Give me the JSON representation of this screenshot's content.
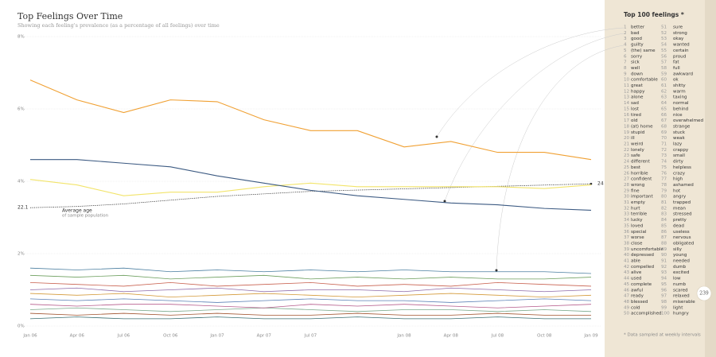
{
  "chart_data": {
    "type": "line",
    "title": "Top Feelings Over Time",
    "subtitle": "Showing each feeling's prevalence (as a percentage of all feelings) over time",
    "x": [
      0,
      3,
      6,
      9,
      12,
      15,
      18,
      21,
      24,
      27,
      30,
      33,
      36
    ],
    "xlim": [
      0,
      36
    ],
    "xticks": [
      {
        "value": 0,
        "label": "Jan 06"
      },
      {
        "value": 3,
        "label": "Apr 06"
      },
      {
        "value": 6,
        "label": "Jul 06"
      },
      {
        "value": 9,
        "label": "Oct 06"
      },
      {
        "value": 12,
        "label": "Jan 07"
      },
      {
        "value": 15,
        "label": "Apr 07"
      },
      {
        "value": 18,
        "label": "Jul 07"
      },
      {
        "value": 24,
        "label": "Jan 08"
      },
      {
        "value": 27,
        "label": "Apr 08"
      },
      {
        "value": 30,
        "label": "Jul 08"
      },
      {
        "value": 33,
        "label": "Oct 08"
      },
      {
        "value": 36,
        "label": "Jan 09"
      }
    ],
    "ylim": [
      0,
      8
    ],
    "yticks": [
      {
        "value": 0,
        "label": "0%"
      },
      {
        "value": 2,
        "label": "2%"
      },
      {
        "value": 4,
        "label": "4%"
      },
      {
        "value": 6,
        "label": "6%"
      },
      {
        "value": 8,
        "label": "8%"
      }
    ],
    "y2lim": [
      12.7,
      35.7
    ],
    "grid": true,
    "series": [
      {
        "name": "better",
        "color": "#f0a032",
        "values": [
          6.8,
          6.25,
          5.9,
          6.25,
          6.2,
          5.7,
          5.4,
          5.4,
          4.95,
          5.1,
          4.8,
          4.8,
          4.6
        ]
      },
      {
        "name": "bad",
        "color": "#3c5a82",
        "values": [
          4.6,
          4.6,
          4.5,
          4.4,
          4.15,
          3.95,
          3.75,
          3.6,
          3.5,
          3.4,
          3.35,
          3.25,
          3.2
        ]
      },
      {
        "name": "good",
        "color": "#f2e46a",
        "values": [
          4.05,
          3.9,
          3.6,
          3.7,
          3.7,
          3.85,
          3.95,
          3.85,
          3.85,
          3.85,
          3.85,
          3.8,
          3.9
        ]
      },
      {
        "name": "guilty",
        "color": "#4a7ea0",
        "values": [
          1.6,
          1.55,
          1.6,
          1.5,
          1.55,
          1.5,
          1.55,
          1.5,
          1.55,
          1.5,
          1.5,
          1.5,
          1.45
        ]
      },
      {
        "name": "(the) same",
        "color": "#6d9f5e",
        "values": [
          1.4,
          1.35,
          1.4,
          1.3,
          1.35,
          1.4,
          1.3,
          1.35,
          1.3,
          1.35,
          1.3,
          1.3,
          1.35
        ]
      },
      {
        "name": "sorry",
        "color": "#c8604e",
        "values": [
          1.2,
          1.15,
          1.1,
          1.2,
          1.1,
          1.15,
          1.2,
          1.1,
          1.15,
          1.1,
          1.2,
          1.15,
          1.1
        ]
      },
      {
        "name": "sick",
        "color": "#8e6aa8",
        "values": [
          1.0,
          1.05,
          0.95,
          1.0,
          1.05,
          0.95,
          1.0,
          1.0,
          0.95,
          1.05,
          1.0,
          0.95,
          1.0
        ]
      },
      {
        "name": "well",
        "color": "#d49a3a",
        "values": [
          0.9,
          0.85,
          0.9,
          0.8,
          0.85,
          0.9,
          0.85,
          0.8,
          0.85,
          0.9,
          0.85,
          0.8,
          0.85
        ]
      },
      {
        "name": "down",
        "color": "#5a7fb5",
        "values": [
          0.75,
          0.7,
          0.75,
          0.7,
          0.65,
          0.7,
          0.75,
          0.7,
          0.7,
          0.65,
          0.7,
          0.75,
          0.7
        ]
      },
      {
        "name": "comfortable",
        "color": "#b55a8a",
        "values": [
          0.6,
          0.55,
          0.6,
          0.6,
          0.55,
          0.5,
          0.6,
          0.55,
          0.6,
          0.55,
          0.5,
          0.55,
          0.6
        ]
      },
      {
        "name": "great",
        "color": "#7aa88a",
        "values": [
          0.45,
          0.5,
          0.45,
          0.4,
          0.45,
          0.5,
          0.45,
          0.4,
          0.45,
          0.45,
          0.4,
          0.45,
          0.4
        ]
      },
      {
        "name": "happy",
        "color": "#a0522d",
        "values": [
          0.35,
          0.3,
          0.35,
          0.3,
          0.35,
          0.3,
          0.3,
          0.35,
          0.3,
          0.3,
          0.35,
          0.3,
          0.3
        ]
      },
      {
        "name": "alone",
        "color": "#3c6e71",
        "values": [
          0.2,
          0.25,
          0.2,
          0.2,
          0.25,
          0.2,
          0.2,
          0.25,
          0.2,
          0.2,
          0.25,
          0.2,
          0.2
        ]
      },
      {
        "name": "Average age",
        "color": "#333333",
        "axis": "y2",
        "dashed": true,
        "values": [
          22.1,
          22.2,
          22.4,
          22.7,
          23.0,
          23.2,
          23.4,
          23.5,
          23.6,
          23.7,
          23.8,
          23.9,
          24
        ]
      }
    ],
    "age_note": "of sample population"
  },
  "sidebar": {
    "title": "Top 100 feelings *",
    "footnote": "* Data sampled at weekly intervals",
    "page_number": "239",
    "items": [
      {
        "rank": 1,
        "name": "better"
      },
      {
        "rank": 2,
        "name": "bad"
      },
      {
        "rank": 3,
        "name": "good"
      },
      {
        "rank": 4,
        "name": "guilty"
      },
      {
        "rank": 5,
        "name": "(the) same"
      },
      {
        "rank": 6,
        "name": "sorry"
      },
      {
        "rank": 7,
        "name": "sick"
      },
      {
        "rank": 8,
        "name": "well"
      },
      {
        "rank": 9,
        "name": "down"
      },
      {
        "rank": 10,
        "name": "comfortable"
      },
      {
        "rank": 11,
        "name": "great"
      },
      {
        "rank": 12,
        "name": "happy"
      },
      {
        "rank": 13,
        "name": "alone"
      },
      {
        "rank": 14,
        "name": "sad"
      },
      {
        "rank": 15,
        "name": "lost"
      },
      {
        "rank": 16,
        "name": "tired"
      },
      {
        "rank": 17,
        "name": "old"
      },
      {
        "rank": 18,
        "name": "(at) home"
      },
      {
        "rank": 19,
        "name": "stupid"
      },
      {
        "rank": 20,
        "name": "ill"
      },
      {
        "rank": 21,
        "name": "weird"
      },
      {
        "rank": 22,
        "name": "lonely"
      },
      {
        "rank": 23,
        "name": "safe"
      },
      {
        "rank": 24,
        "name": "different"
      },
      {
        "rank": 25,
        "name": "best"
      },
      {
        "rank": 26,
        "name": "horrible"
      },
      {
        "rank": 27,
        "name": "confident"
      },
      {
        "rank": 28,
        "name": "wrong"
      },
      {
        "rank": 29,
        "name": "fine"
      },
      {
        "rank": 30,
        "name": "important"
      },
      {
        "rank": 31,
        "name": "empty"
      },
      {
        "rank": 32,
        "name": "hurt"
      },
      {
        "rank": 33,
        "name": "terrible"
      },
      {
        "rank": 34,
        "name": "lucky"
      },
      {
        "rank": 35,
        "name": "loved"
      },
      {
        "rank": 36,
        "name": "special"
      },
      {
        "rank": 37,
        "name": "worse"
      },
      {
        "rank": 38,
        "name": "close"
      },
      {
        "rank": 39,
        "name": "uncomfortable"
      },
      {
        "rank": 40,
        "name": "depressed"
      },
      {
        "rank": 41,
        "name": "able"
      },
      {
        "rank": 42,
        "name": "compelled"
      },
      {
        "rank": 43,
        "name": "alive"
      },
      {
        "rank": 44,
        "name": "used"
      },
      {
        "rank": 45,
        "name": "complete"
      },
      {
        "rank": 46,
        "name": "awful"
      },
      {
        "rank": 47,
        "name": "ready"
      },
      {
        "rank": 48,
        "name": "blessed"
      },
      {
        "rank": 49,
        "name": "cold"
      },
      {
        "rank": 50,
        "name": "accomplished"
      },
      {
        "rank": 51,
        "name": "sure"
      },
      {
        "rank": 52,
        "name": "strong"
      },
      {
        "rank": 53,
        "name": "okay"
      },
      {
        "rank": 54,
        "name": "wanted"
      },
      {
        "rank": 55,
        "name": "certain"
      },
      {
        "rank": 56,
        "name": "proud"
      },
      {
        "rank": 57,
        "name": "fat"
      },
      {
        "rank": 58,
        "name": "full"
      },
      {
        "rank": 59,
        "name": "awkward"
      },
      {
        "rank": 60,
        "name": "ok"
      },
      {
        "rank": 61,
        "name": "shitty"
      },
      {
        "rank": 62,
        "name": "warm"
      },
      {
        "rank": 63,
        "name": "taxing"
      },
      {
        "rank": 64,
        "name": "normal"
      },
      {
        "rank": 65,
        "name": "behind"
      },
      {
        "rank": 66,
        "name": "nice"
      },
      {
        "rank": 67,
        "name": "overwhelmed"
      },
      {
        "rank": 68,
        "name": "strange"
      },
      {
        "rank": 69,
        "name": "stuck"
      },
      {
        "rank": 70,
        "name": "weak"
      },
      {
        "rank": 71,
        "name": "lazy"
      },
      {
        "rank": 72,
        "name": "crappy"
      },
      {
        "rank": 73,
        "name": "small"
      },
      {
        "rank": 74,
        "name": "dirty"
      },
      {
        "rank": 75,
        "name": "helpless"
      },
      {
        "rank": 76,
        "name": "crazy"
      },
      {
        "rank": 77,
        "name": "high"
      },
      {
        "rank": 78,
        "name": "ashamed"
      },
      {
        "rank": 79,
        "name": "hot"
      },
      {
        "rank": 80,
        "name": "angry"
      },
      {
        "rank": 81,
        "name": "trapped"
      },
      {
        "rank": 82,
        "name": "mean"
      },
      {
        "rank": 83,
        "name": "stressed"
      },
      {
        "rank": 84,
        "name": "pretty"
      },
      {
        "rank": 85,
        "name": "dead"
      },
      {
        "rank": 86,
        "name": "useless"
      },
      {
        "rank": 87,
        "name": "nervous"
      },
      {
        "rank": 88,
        "name": "obligated"
      },
      {
        "rank": 89,
        "name": "silly"
      },
      {
        "rank": 90,
        "name": "young"
      },
      {
        "rank": 91,
        "name": "needed"
      },
      {
        "rank": 92,
        "name": "dumb"
      },
      {
        "rank": 93,
        "name": "excited"
      },
      {
        "rank": 94,
        "name": "low"
      },
      {
        "rank": 95,
        "name": "numb"
      },
      {
        "rank": 96,
        "name": "scared"
      },
      {
        "rank": 97,
        "name": "relaxed"
      },
      {
        "rank": 98,
        "name": "miserable"
      },
      {
        "rank": 99,
        "name": "light"
      },
      {
        "rank": 100,
        "name": "hungry"
      }
    ]
  }
}
